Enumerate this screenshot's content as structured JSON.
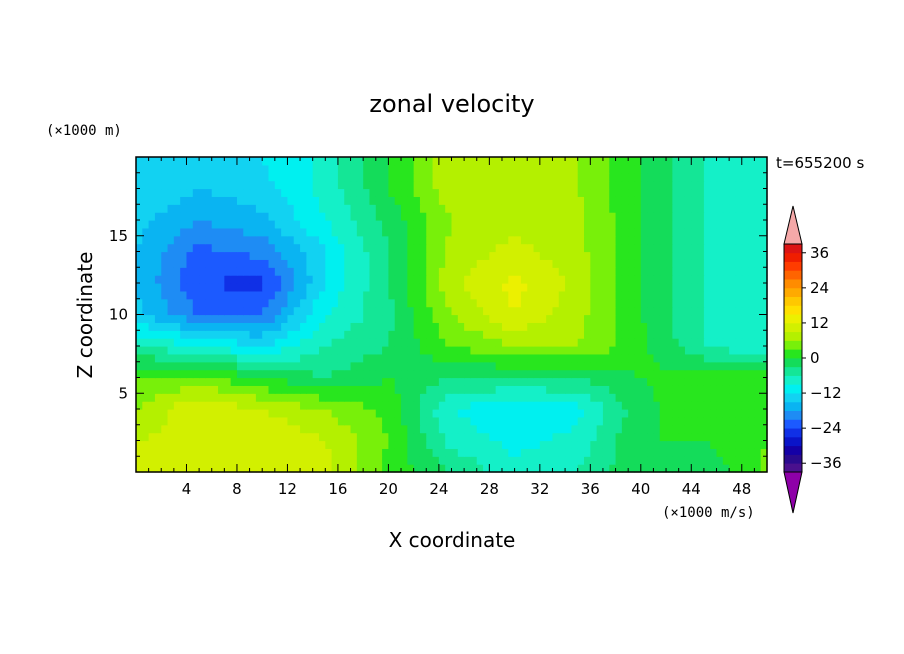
{
  "chart_data": {
    "type": "heatmap",
    "title": "zonal velocity",
    "xlabel": "X coordinate",
    "ylabel": "Z coordinate",
    "x_units": "(×1000 m/s)",
    "y_units": "(×1000 m)",
    "time_label": "t=655200 s",
    "xlim": [
      0,
      50
    ],
    "ylim": [
      0,
      20
    ],
    "x_ticks": [
      4,
      8,
      12,
      16,
      20,
      24,
      28,
      32,
      36,
      40,
      44,
      48
    ],
    "y_ticks": [
      5,
      10,
      15
    ],
    "colorbar": {
      "levels": [
        -42,
        -39,
        -36,
        -33,
        -30,
        -27,
        -24,
        -21,
        -18,
        -15,
        -12,
        -9,
        -6,
        -3,
        0,
        3,
        6,
        9,
        12,
        15,
        18,
        21,
        24,
        27,
        30,
        33,
        36,
        39,
        42
      ],
      "colors": [
        "#8e00a8",
        "#4a108e",
        "#2a0a8e",
        "#1400a6",
        "#0a14c8",
        "#1030e6",
        "#1c5aff",
        "#1e8cf4",
        "#0ab4f2",
        "#12d2f2",
        "#00f0f0",
        "#14f0c8",
        "#14e696",
        "#14dc5a",
        "#28e61e",
        "#78f00a",
        "#b4f000",
        "#d2f000",
        "#ecf000",
        "#ffe000",
        "#ffc800",
        "#ffaa00",
        "#ff8c00",
        "#ff6400",
        "#ff3c00",
        "#f01e00",
        "#dc1414",
        "#f5a8a8"
      ],
      "tick_labels": [
        36,
        24,
        12,
        0,
        -12,
        -24,
        -36
      ]
    },
    "grid_x": [
      0,
      5,
      10,
      15,
      20,
      25,
      30,
      35,
      40,
      45,
      50
    ],
    "grid_z": [
      0,
      2,
      4,
      6,
      8,
      10,
      12,
      14,
      16,
      18,
      20
    ],
    "values": [
      [
        12,
        10,
        12,
        10,
        2,
        -3,
        -8,
        -6,
        0,
        -3,
        4
      ],
      [
        9,
        10,
        12,
        9,
        3,
        -7,
        -10,
        -8,
        0,
        0,
        3
      ],
      [
        6,
        12,
        9,
        6,
        2,
        -9,
        -12,
        -10,
        -1,
        2,
        2
      ],
      [
        3,
        4,
        0,
        -3,
        0,
        -3,
        -3,
        -3,
        0,
        2,
        2
      ],
      [
        -6,
        -9,
        -12,
        -6,
        -3,
        3,
        6,
        6,
        1,
        -6,
        -9
      ],
      [
        -14,
        -21,
        -21,
        -9,
        -4,
        6,
        12,
        7,
        0,
        -6,
        -9
      ],
      [
        -15,
        -24,
        -25,
        -12,
        -3,
        8,
        13,
        8,
        0,
        -6,
        -9
      ],
      [
        -15,
        -22,
        -20,
        -12,
        -3,
        7,
        10,
        7,
        0,
        -6,
        -9
      ],
      [
        -14,
        -18,
        -16,
        -9,
        -2,
        6,
        8,
        7,
        0,
        -6,
        -9
      ],
      [
        -12,
        -15,
        -13,
        -8,
        0,
        8,
        8,
        6,
        0,
        -6,
        -9
      ],
      [
        -12,
        -14,
        -12,
        -8,
        0,
        8,
        8,
        6,
        0,
        -6,
        -9
      ]
    ]
  }
}
